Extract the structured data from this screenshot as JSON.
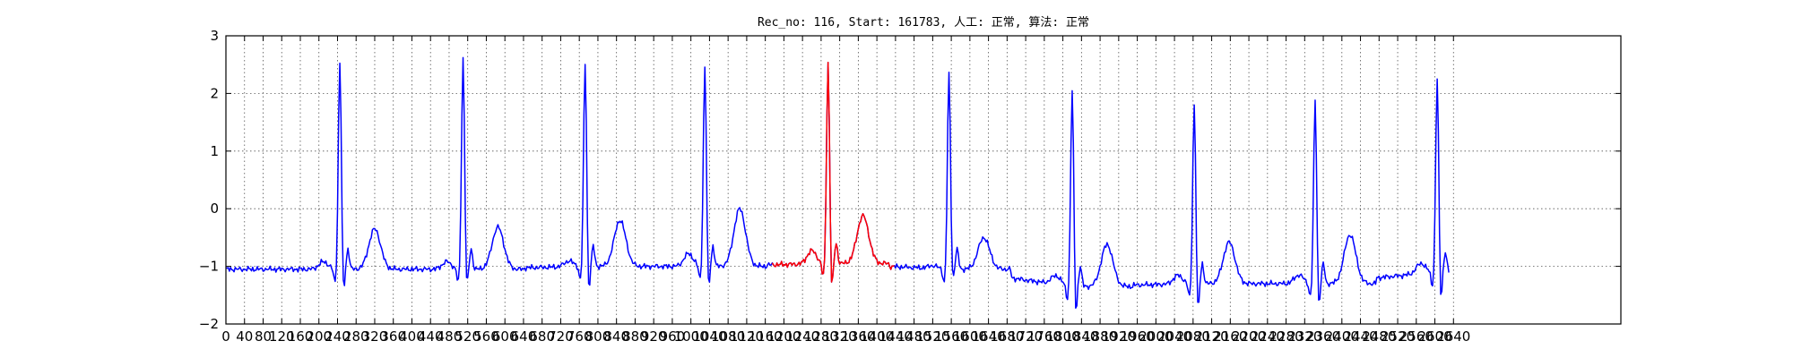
{
  "chart_data": {
    "type": "line",
    "title": "Rec_no: 116, Start: 161783, 人工: 正常, 算法: 正常",
    "xlabel": "",
    "ylabel": "",
    "xlim": [
      0,
      1200
    ],
    "ylim": [
      -2,
      3
    ],
    "grid": true,
    "grid_style": "dotted",
    "yticks": [
      -2,
      -1,
      0,
      1,
      2,
      3
    ],
    "xticks": [
      0,
      16,
      32,
      48,
      64,
      80,
      96,
      112,
      128,
      144,
      160,
      176,
      192,
      208,
      224,
      240,
      256,
      272,
      288,
      304,
      320,
      336,
      352,
      368,
      384,
      400,
      416,
      432,
      448,
      464,
      480,
      496,
      512,
      528,
      544,
      560,
      576,
      592,
      608,
      624,
      640,
      656,
      672,
      688,
      704,
      720,
      736,
      752,
      768,
      784,
      800,
      816,
      832,
      848,
      864,
      880,
      896,
      912,
      928,
      944,
      960,
      976,
      992,
      1008,
      1024,
      1040,
      1056
    ],
    "xtick_labels": [
      "0",
      "40",
      "80",
      "120",
      "160",
      "200",
      "240",
      "280",
      "320",
      "360",
      "400",
      "440",
      "480",
      "520",
      "560",
      "600",
      "640",
      "680",
      "720",
      "760",
      "800",
      "840",
      "880",
      "920",
      "960",
      "1000",
      "1040",
      "1080",
      "1120",
      "1160",
      "1200",
      "1240",
      "1280",
      "1320",
      "1360",
      "1400",
      "1440",
      "1480",
      "1520",
      "1560",
      "1600",
      "1640",
      "1680",
      "1720",
      "1760",
      "1800",
      "1840",
      "1880",
      "1920",
      "1960",
      "2000",
      "2040",
      "2080",
      "2120",
      "2160",
      "2200",
      "2240",
      "2280",
      "2320",
      "2360",
      "2400",
      "2440",
      "2480",
      "2520",
      "2560",
      "2600",
      "2640"
    ],
    "beats": [
      {
        "r": 98,
        "r_amp": 2.55,
        "s_amp": -1.55,
        "base": -1.05,
        "t_amp": -0.35,
        "p_amp": -0.92
      },
      {
        "r": 204,
        "r_amp": 2.6,
        "s_amp": -1.45,
        "base": -1.05,
        "t_amp": -0.32,
        "p_amp": -0.92
      },
      {
        "r": 309,
        "r_amp": 2.52,
        "s_amp": -1.55,
        "base": -1.0,
        "t_amp": -0.2,
        "p_amp": -0.9
      },
      {
        "r": 412,
        "r_amp": 2.47,
        "s_amp": -1.5,
        "base": -1.0,
        "t_amp": 0.0,
        "p_amp": -0.78
      },
      {
        "r": 518,
        "r_amp": 2.52,
        "s_amp": -1.5,
        "base": -0.95,
        "t_amp": -0.12,
        "p_amp": -0.72
      },
      {
        "r": 622,
        "r_amp": 2.35,
        "s_amp": -1.3,
        "base": -1.05,
        "t_amp": -0.5,
        "p_amp": -1.0
      },
      {
        "r": 728,
        "r_amp": 2.05,
        "s_amp": -1.95,
        "base": -1.35,
        "t_amp": -0.62,
        "p_amp": -1.2
      },
      {
        "r": 833,
        "r_amp": 1.82,
        "s_amp": -1.9,
        "base": -1.3,
        "t_amp": -0.58,
        "p_amp": -1.15
      },
      {
        "r": 937,
        "r_amp": 1.87,
        "s_amp": -1.8,
        "base": -1.3,
        "t_amp": -0.45,
        "p_amp": -1.15
      },
      {
        "r": 1042,
        "r_amp": 2.25,
        "s_amp": -1.7,
        "base": -1.1,
        "t_amp": null,
        "p_amp": -0.92
      }
    ],
    "series": [
      {
        "color": "#0000ff",
        "x_range": [
          0,
          1052
        ]
      },
      {
        "color": "#ff0000",
        "x_range": [
          470,
          575
        ]
      }
    ]
  }
}
